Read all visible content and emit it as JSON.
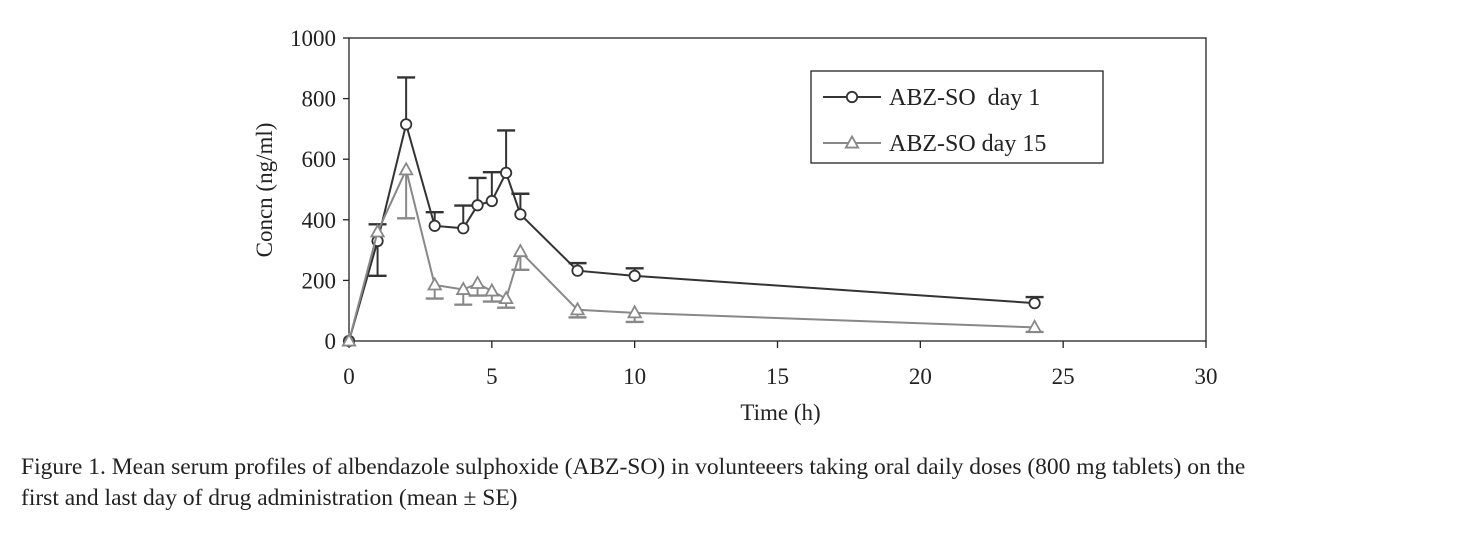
{
  "chart_data": {
    "type": "line",
    "xlabel": "Time (h)",
    "ylabel": "Concn (ng/ml)",
    "xlim": [
      0,
      30
    ],
    "ylim": [
      0,
      1000
    ],
    "xticks": [
      "0",
      "5",
      "10",
      "15",
      "20",
      "25",
      "30"
    ],
    "yticks": [
      "0",
      "200",
      "400",
      "600",
      "800",
      "1000"
    ],
    "grid": false,
    "legend_position": "top-right",
    "series": [
      {
        "name": "ABZ-SO  day 1",
        "marker": "circle",
        "color": "#333333",
        "x": [
          0,
          1,
          2,
          3,
          4,
          4.5,
          5,
          5.5,
          6,
          8,
          10,
          24
        ],
        "y": [
          0,
          330,
          715,
          380,
          372,
          448,
          462,
          555,
          418,
          232,
          215,
          125
        ],
        "error_plus": [
          0,
          55,
          155,
          45,
          75,
          90,
          95,
          140,
          68,
          25,
          25,
          20
        ],
        "error_minus": [
          0,
          115,
          0,
          0,
          0,
          0,
          0,
          0,
          0,
          0,
          0,
          0
        ]
      },
      {
        "name": "ABZ-SO day 15",
        "marker": "triangle",
        "color": "#888888",
        "x": [
          0,
          1,
          2,
          3,
          4,
          4.5,
          5,
          5.5,
          6,
          8,
          10,
          24
        ],
        "y": [
          0,
          360,
          565,
          185,
          170,
          190,
          165,
          140,
          295,
          103,
          93,
          45
        ],
        "error_plus": [
          0,
          0,
          0,
          0,
          0,
          0,
          0,
          0,
          0,
          0,
          0,
          0
        ],
        "error_minus": [
          0,
          0,
          160,
          45,
          50,
          40,
          35,
          30,
          60,
          25,
          30,
          15
        ]
      }
    ]
  },
  "caption": {
    "line1": "Figure 1.  Mean serum profiles of albendazole sulphoxide (ABZ-SO) in volunteeers taking oral daily doses (800 mg tablets) on the",
    "line2": "first and last day of drug administration (mean ± SE)"
  }
}
